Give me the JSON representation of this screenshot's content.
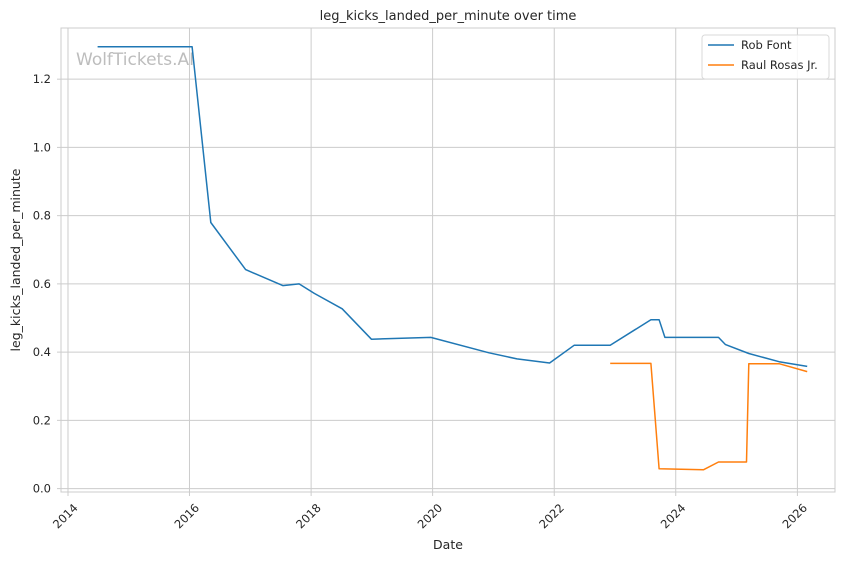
{
  "chart_data": {
    "type": "line",
    "title": "leg_kicks_landed_per_minute over time",
    "xlabel": "Date",
    "ylabel": "leg_kicks_landed_per_minute",
    "watermark": "WolfTickets.AI",
    "xlim": [
      "2013-11-20",
      "2026-08-15"
    ],
    "ylim": [
      -0.01,
      1.35
    ],
    "x_ticks": [
      "2014",
      "2016",
      "2018",
      "2020",
      "2022",
      "2024",
      "2026"
    ],
    "y_ticks": [
      "0.0",
      "0.2",
      "0.4",
      "0.6",
      "0.8",
      "1.0",
      "1.2"
    ],
    "grid": true,
    "legend_position": "top-right",
    "series": [
      {
        "name": "Rob Font",
        "color": "#1f77b4",
        "x": [
          "2014-06-28",
          "2016-01-17",
          "2016-05-08",
          "2016-12-03",
          "2017-07-15",
          "2017-10-21",
          "2018-01-20",
          "2018-07-07",
          "2018-12-29",
          "2019-12-21",
          "2020-12-05",
          "2021-05-22",
          "2021-12-04",
          "2022-04-30",
          "2022-12-03",
          "2023-08-05",
          "2023-09-23",
          "2023-10-28",
          "2024-09-14",
          "2024-10-26",
          "2025-03-15",
          "2025-09-13",
          "2026-03-01"
        ],
        "y": [
          1.295,
          1.295,
          0.78,
          0.642,
          0.595,
          0.6,
          0.572,
          0.527,
          0.438,
          0.443,
          0.398,
          0.38,
          0.368,
          0.42,
          0.42,
          0.495,
          0.495,
          0.443,
          0.443,
          0.422,
          0.396,
          0.372,
          0.358
        ]
      },
      {
        "name": "Raul Rosas Jr.",
        "color": "#ff7f0e",
        "x": [
          "2022-12-03",
          "2023-08-05",
          "2023-09-23",
          "2024-06-15",
          "2024-09-14",
          "2025-03-01",
          "2025-03-15",
          "2025-09-13",
          "2026-03-01"
        ],
        "y": [
          0.367,
          0.367,
          0.058,
          0.055,
          0.078,
          0.078,
          0.366,
          0.366,
          0.343
        ]
      }
    ]
  }
}
